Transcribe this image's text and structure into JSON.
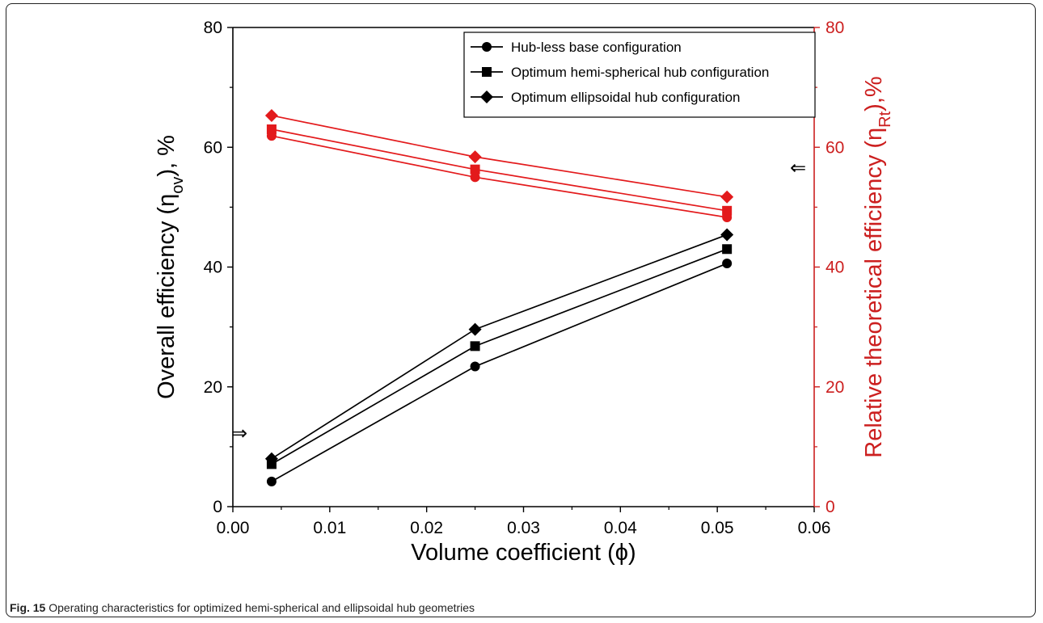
{
  "caption": {
    "label": "Fig. 15",
    "text": "Operating characteristics for optimized hemi-spherical and ellipsoidal hub geometries"
  },
  "chart_data": {
    "type": "line",
    "xlabel": "Volume coefficient (ϕ)",
    "ylabel_left": "Overall efficiency (η",
    "ylabel_left_sub": "ov",
    "ylabel_left_tail": "), %",
    "ylabel_right": "Relative theoretical efficiency (η",
    "ylabel_right_sub": "Rt",
    "ylabel_right_tail": "),%",
    "xlim": [
      0.0,
      0.06
    ],
    "ylim_left": [
      0,
      80
    ],
    "ylim_right": [
      0,
      80
    ],
    "x_ticks": [
      "0.00",
      "0.01",
      "0.02",
      "0.03",
      "0.04",
      "0.05",
      "0.06"
    ],
    "y_ticks_left": [
      "0",
      "20",
      "40",
      "60",
      "80"
    ],
    "y_ticks_right": [
      "0",
      "20",
      "40",
      "60",
      "80"
    ],
    "legend_placement": "top-right",
    "legend_color": "#000000",
    "axis_right_color": "#cc1f1f",
    "series": [
      {
        "name": "Hub-less base configuration",
        "marker": "circle",
        "axis": "left",
        "color": "#000000",
        "x": [
          0.004,
          0.025,
          0.051
        ],
        "y": [
          4.2,
          23.4,
          40.6
        ]
      },
      {
        "name": "Optimum hemi-spherical hub configuration",
        "marker": "square",
        "axis": "left",
        "color": "#000000",
        "x": [
          0.004,
          0.025,
          0.051
        ],
        "y": [
          7.1,
          26.8,
          43.0
        ]
      },
      {
        "name": "Optimum ellipsoidal hub configuration",
        "marker": "diamond",
        "axis": "left",
        "color": "#000000",
        "x": [
          0.004,
          0.025,
          0.051
        ],
        "y": [
          8.0,
          29.6,
          45.4
        ]
      },
      {
        "marker": "circle",
        "axis": "right",
        "color": "#e31a1c",
        "x": [
          0.004,
          0.025,
          0.051
        ],
        "y": [
          61.9,
          55.0,
          48.3
        ]
      },
      {
        "marker": "square",
        "axis": "right",
        "color": "#e31a1c",
        "x": [
          0.004,
          0.025,
          0.051
        ],
        "y": [
          63.0,
          56.3,
          49.4
        ]
      },
      {
        "marker": "diamond",
        "axis": "right",
        "color": "#e31a1c",
        "x": [
          0.004,
          0.025,
          0.051
        ],
        "y": [
          65.3,
          58.4,
          51.7
        ]
      }
    ],
    "annotations": [
      {
        "symbol": "⇒",
        "points_to": "left axis",
        "x": 0.0,
        "y": 12.3
      },
      {
        "symbol": "⇐",
        "points_to": "right axis",
        "x": 0.06,
        "y": 56.6
      }
    ]
  }
}
